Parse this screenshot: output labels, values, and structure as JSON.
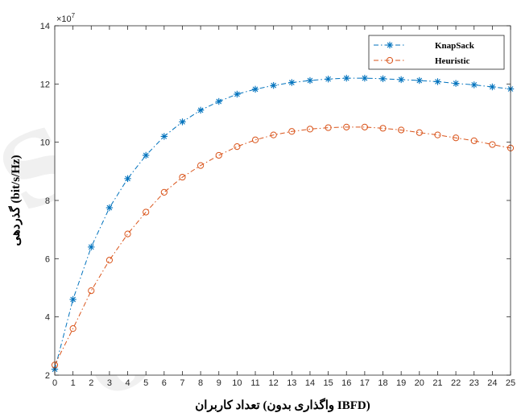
{
  "chart_data": {
    "type": "line",
    "xlabel": "تعداد کاربران (واگذاری بدون IBFD)",
    "ylabel": "گذردهی (bit/s/Hz)",
    "y_multiplier": "×10",
    "y_multiplier_exp": "7",
    "xlim": [
      0,
      25
    ],
    "ylim": [
      2,
      14
    ],
    "x_ticks": [
      0,
      1,
      2,
      3,
      4,
      5,
      6,
      7,
      8,
      9,
      10,
      11,
      12,
      13,
      14,
      15,
      16,
      17,
      18,
      19,
      20,
      21,
      22,
      23,
      24,
      25
    ],
    "y_ticks": [
      2,
      4,
      6,
      8,
      10,
      12,
      14
    ],
    "grid": false,
    "legend_position": "top-right",
    "x": [
      0,
      1,
      2,
      3,
      4,
      5,
      6,
      7,
      8,
      9,
      10,
      11,
      12,
      13,
      14,
      15,
      16,
      17,
      18,
      19,
      20,
      21,
      22,
      23,
      24,
      25
    ],
    "series": [
      {
        "name": "KnapSack",
        "color": "#0072BD",
        "marker": "asterisk",
        "values": [
          2.2,
          4.6,
          6.4,
          7.75,
          8.75,
          9.55,
          10.2,
          10.7,
          11.1,
          11.4,
          11.65,
          11.82,
          11.95,
          12.05,
          12.12,
          12.17,
          12.2,
          12.2,
          12.18,
          12.15,
          12.12,
          12.08,
          12.02,
          11.97,
          11.9,
          11.83
        ]
      },
      {
        "name": "Heuristic",
        "color": "#D95319",
        "marker": "circle",
        "values": [
          2.35,
          3.6,
          4.9,
          5.95,
          6.85,
          7.6,
          8.28,
          8.8,
          9.2,
          9.55,
          9.85,
          10.08,
          10.25,
          10.37,
          10.45,
          10.5,
          10.52,
          10.52,
          10.48,
          10.42,
          10.33,
          10.25,
          10.15,
          10.05,
          9.92,
          9.8
        ]
      }
    ]
  }
}
